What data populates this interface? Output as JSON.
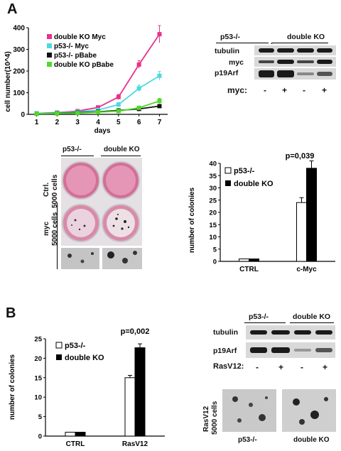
{
  "panelA": {
    "label": "A",
    "growth": {
      "ylabel": "cell number(10^4)",
      "xlabel": "days",
      "legend": [
        "double KO Myc",
        "p53-/- Myc",
        "p53-/- pBabe",
        "double KO pBabe"
      ]
    },
    "blot": {
      "header1": "p53-/-",
      "header2": "double KO",
      "rows": [
        "tubulin",
        "myc",
        "p19Arf"
      ],
      "condition_label": "myc:",
      "signs": [
        "-",
        "+",
        "-",
        "+"
      ]
    },
    "colonyImages": {
      "col1": "p53-/-",
      "col2": "double KO",
      "row1a": "Ctrl.",
      "row1b": "5000 cells",
      "row2a": "myc",
      "row2b": "5000 cells"
    },
    "barChart": {
      "ylabel": "number of colonies",
      "pvalue": "p=0,039",
      "legend": [
        "p53-/-",
        "double KO"
      ]
    }
  },
  "panelB": {
    "label": "B",
    "barChart": {
      "ylabel": "number of colonies",
      "pvalue": "p=0,002",
      "legend": [
        "p53-/-",
        "double KO"
      ]
    },
    "blot": {
      "header1": "p53-/-",
      "header2": "double KO",
      "rows": [
        "tubulin",
        "p19Arf"
      ],
      "condition_label": "RasV12:",
      "signs": [
        "-",
        "+",
        "-",
        "+"
      ]
    },
    "images": {
      "side_a": "RasV12",
      "side_b": "5000 cells",
      "cap1": "p53-/-",
      "cap2": "double KO"
    }
  },
  "chart_data": [
    {
      "type": "line",
      "x": [
        1,
        2,
        3,
        4,
        5,
        6,
        7
      ],
      "xlabel": "days",
      "ylabel": "cell number(10^4)",
      "ylim": [
        0,
        400
      ],
      "yticks": [
        0,
        100,
        200,
        300,
        400
      ],
      "legend_position": "top-left",
      "series": [
        {
          "name": "double KO Myc",
          "color": "#e8308c",
          "values": [
            5,
            8,
            15,
            32,
            80,
            230,
            370
          ],
          "err": [
            2,
            3,
            5,
            6,
            12,
            18,
            40
          ]
        },
        {
          "name": "p53-/- Myc",
          "color": "#4fd8e0",
          "values": [
            5,
            7,
            12,
            20,
            45,
            120,
            178
          ],
          "err": [
            2,
            3,
            4,
            5,
            10,
            15,
            20
          ]
        },
        {
          "name": "p53-/- pBabe",
          "color": "#111111",
          "values": [
            3,
            5,
            8,
            12,
            18,
            25,
            38
          ],
          "err": [
            1,
            2,
            3,
            4,
            5,
            6,
            8
          ]
        },
        {
          "name": "double KO pBabe",
          "color": "#4fd92a",
          "values": [
            3,
            4,
            6,
            10,
            15,
            30,
            62
          ],
          "err": [
            1,
            2,
            3,
            3,
            4,
            8,
            12
          ]
        }
      ]
    },
    {
      "type": "bar",
      "categories": [
        "CTRL",
        "c-Myc"
      ],
      "ylabel": "number of colonies",
      "ylim": [
        0,
        40
      ],
      "yticks": [
        0,
        5,
        10,
        15,
        20,
        25,
        30,
        35,
        40
      ],
      "annotation": "p=0,039",
      "series": [
        {
          "name": "p53-/-",
          "color": "#ffffff",
          "values": [
            1,
            24
          ],
          "err": [
            0,
            2
          ]
        },
        {
          "name": "double KO",
          "color": "#000000",
          "values": [
            1,
            38
          ],
          "err": [
            0,
            3
          ]
        }
      ]
    },
    {
      "type": "bar",
      "categories": [
        "CTRL",
        "RasV12"
      ],
      "ylabel": "number of colonies",
      "ylim": [
        0,
        25
      ],
      "yticks": [
        0,
        5,
        10,
        15,
        20,
        25
      ],
      "annotation": "p=0,002",
      "series": [
        {
          "name": "p53-/-",
          "color": "#ffffff",
          "values": [
            1,
            15
          ],
          "err": [
            0,
            0.6
          ]
        },
        {
          "name": "double KO",
          "color": "#000000",
          "values": [
            1,
            22.7
          ],
          "err": [
            0,
            1.0
          ]
        }
      ]
    }
  ]
}
